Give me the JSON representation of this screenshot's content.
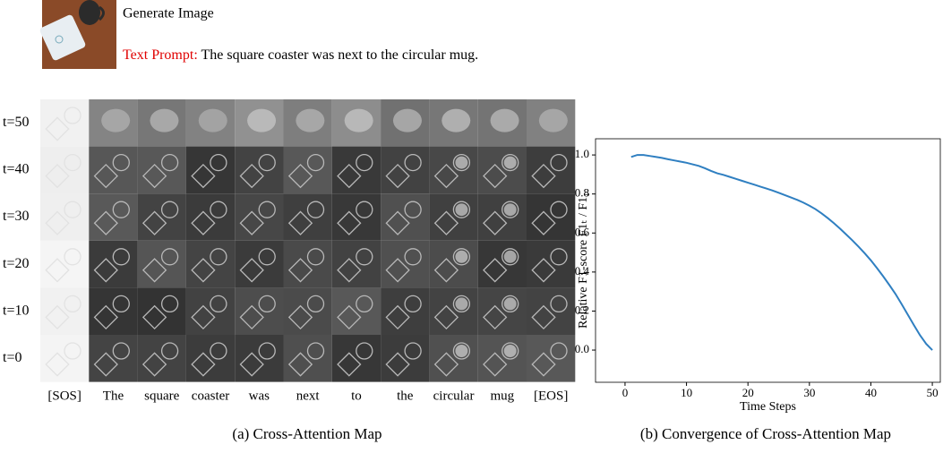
{
  "header": {
    "title": "Generate Image",
    "prompt_label": "Text Prompt:",
    "prompt_text": "The square coaster was next to the circular mug."
  },
  "attention_grid": {
    "rows": [
      "t=50",
      "t=40",
      "t=30",
      "t=20",
      "t=10",
      "t=0"
    ],
    "tokens": [
      "[SOS]",
      "The",
      "square",
      "coaster",
      "was",
      "next",
      "to",
      "the",
      "circular",
      "mug",
      "[EOS]"
    ],
    "caption": "(a) Cross-Attention Map"
  },
  "chart_data": {
    "type": "line",
    "caption": "(b) Convergence of Cross-Attention Map",
    "xlabel": "Time Steps",
    "ylabel": "Relative F1-score F1ₜ / F1₁",
    "x": [
      1,
      2,
      3,
      4,
      5,
      6,
      7,
      8,
      9,
      10,
      11,
      12,
      13,
      14,
      15,
      16,
      17,
      18,
      19,
      20,
      21,
      22,
      23,
      24,
      25,
      26,
      27,
      28,
      29,
      30,
      31,
      32,
      33,
      34,
      35,
      36,
      37,
      38,
      39,
      40,
      41,
      42,
      43,
      44,
      45,
      46,
      47,
      48,
      49,
      50
    ],
    "values": [
      0.99,
      1.0,
      1.0,
      0.995,
      0.99,
      0.985,
      0.978,
      0.972,
      0.966,
      0.96,
      0.952,
      0.944,
      0.932,
      0.918,
      0.906,
      0.898,
      0.888,
      0.878,
      0.868,
      0.858,
      0.848,
      0.838,
      0.828,
      0.818,
      0.806,
      0.794,
      0.782,
      0.77,
      0.756,
      0.74,
      0.722,
      0.7,
      0.676,
      0.65,
      0.622,
      0.592,
      0.562,
      0.53,
      0.496,
      0.46,
      0.42,
      0.378,
      0.334,
      0.288,
      0.236,
      0.182,
      0.128,
      0.076,
      0.032,
      0.0
    ],
    "color": "#2f7fc1",
    "xlim": [
      -4.8,
      51.3
    ],
    "ylim": [
      -0.165,
      1.083
    ],
    "xticks": [
      0,
      10,
      20,
      30,
      40,
      50
    ],
    "yticks": [
      {
        "value": 0.0,
        "label": "0.0"
      },
      0.2,
      0.4,
      0.6,
      0.8,
      {
        "value": 1.0,
        "label": "1.0"
      }
    ]
  }
}
